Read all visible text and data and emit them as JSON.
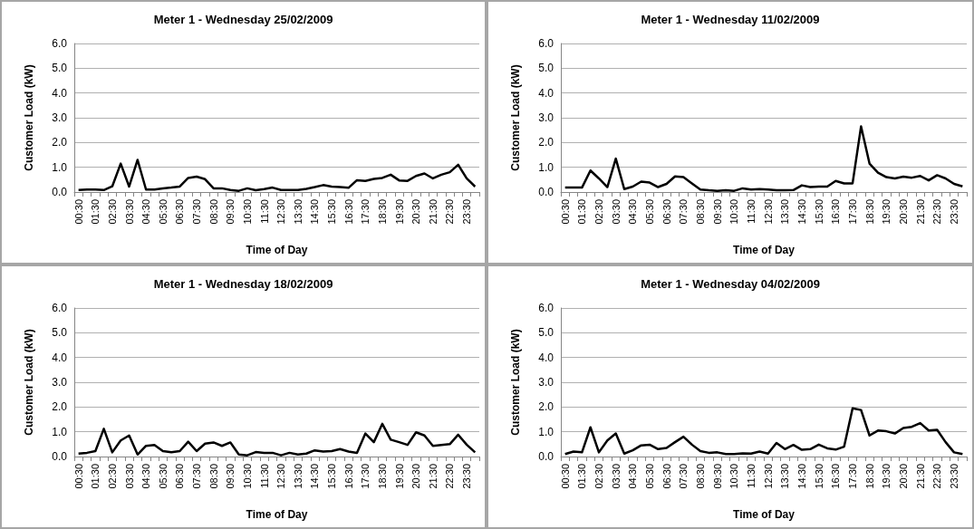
{
  "chart_data": [
    {
      "type": "line",
      "title": "Meter 1 - Wednesday 25/02/2009",
      "xlabel": "Time of Day",
      "ylabel": "Customer Load (kW)",
      "categories": [
        "00:30",
        null,
        "01:30",
        null,
        "02:30",
        null,
        "03:30",
        null,
        "04:30",
        null,
        "05:30",
        null,
        "06:30",
        null,
        "07:30",
        null,
        "08:30",
        null,
        "09:30",
        null,
        "10:30",
        null,
        "11:30",
        null,
        "12:30",
        null,
        "13:30",
        null,
        "14:30",
        null,
        "15:30",
        null,
        "16:30",
        null,
        "17:30",
        null,
        "18:30",
        null,
        "19:30",
        null,
        "20:30",
        null,
        "21:30",
        null,
        "22:30",
        null,
        "23:30",
        null
      ],
      "series": [
        {
          "color": "#000000",
          "values": [
            0.08,
            0.1,
            0.1,
            0.08,
            0.23,
            1.15,
            0.22,
            1.3,
            0.1,
            0.1,
            0.15,
            0.18,
            0.22,
            0.57,
            0.62,
            0.52,
            0.15,
            0.15,
            0.08,
            0.05,
            0.15,
            0.07,
            0.12,
            0.18,
            0.08,
            0.08,
            0.08,
            0.13,
            0.2,
            0.28,
            0.22,
            0.2,
            0.17,
            0.48,
            0.45,
            0.53,
            0.57,
            0.7,
            0.47,
            0.45,
            0.65,
            0.75,
            0.55,
            0.7,
            0.8,
            1.1,
            0.55,
            0.22
          ]
        }
      ],
      "ylim": [
        0,
        6
      ],
      "yticks": [
        {
          "value": 0,
          "label": "0.0"
        },
        {
          "value": 1,
          "label": "1.0"
        },
        {
          "value": 2,
          "label": "2.0"
        },
        {
          "value": 3,
          "label": "3.0"
        },
        {
          "value": 4,
          "label": "4.0"
        },
        {
          "value": 5,
          "label": "5.0"
        },
        {
          "value": 6,
          "label": "6.0"
        }
      ],
      "grid": "y",
      "marker": "none",
      "line_style": "solid"
    },
    {
      "type": "line",
      "title": "Meter 1 - Wednesday 11/02/2009",
      "xlabel": "Time of Day",
      "ylabel": "Customer Load (kW)",
      "categories": [
        "00:30",
        null,
        "01:30",
        null,
        "02:30",
        null,
        "03:30",
        null,
        "04:30",
        null,
        "05:30",
        null,
        "06:30",
        null,
        "07:30",
        null,
        "08:30",
        null,
        "09:30",
        null,
        "10:30",
        null,
        "11:30",
        null,
        "12:30",
        null,
        "13:30",
        null,
        "14:30",
        null,
        "15:30",
        null,
        "16:30",
        null,
        "17:30",
        null,
        "18:30",
        null,
        "19:30",
        null,
        "20:30",
        null,
        "21:30",
        null,
        "22:30",
        null,
        "23:30",
        null
      ],
      "series": [
        {
          "color": "#000000",
          "values": [
            0.18,
            0.18,
            0.18,
            0.87,
            0.55,
            0.2,
            1.35,
            0.12,
            0.22,
            0.42,
            0.38,
            0.2,
            0.33,
            0.63,
            0.6,
            0.35,
            0.1,
            0.07,
            0.05,
            0.07,
            0.05,
            0.15,
            0.1,
            0.12,
            0.1,
            0.07,
            0.07,
            0.08,
            0.27,
            0.2,
            0.22,
            0.22,
            0.45,
            0.35,
            0.35,
            2.65,
            1.15,
            0.78,
            0.6,
            0.55,
            0.62,
            0.58,
            0.65,
            0.47,
            0.68,
            0.55,
            0.33,
            0.23
          ]
        }
      ],
      "ylim": [
        0,
        6
      ],
      "yticks": [
        {
          "value": 0,
          "label": "0.0"
        },
        {
          "value": 1,
          "label": "1.0"
        },
        {
          "value": 2,
          "label": "2.0"
        },
        {
          "value": 3,
          "label": "3.0"
        },
        {
          "value": 4,
          "label": "4.0"
        },
        {
          "value": 5,
          "label": "5.0"
        },
        {
          "value": 6,
          "label": "6.0"
        }
      ],
      "grid": "y",
      "marker": "none",
      "line_style": "solid"
    },
    {
      "type": "line",
      "title": "Meter 1 - Wednesday 18/02/2009",
      "xlabel": "Time of Day",
      "ylabel": "Customer Load (kW)",
      "categories": [
        "00:30",
        null,
        "01:30",
        null,
        "02:30",
        null,
        "03:30",
        null,
        "04:30",
        null,
        "05:30",
        null,
        "06:30",
        null,
        "07:30",
        null,
        "08:30",
        null,
        "09:30",
        null,
        "10:30",
        null,
        "11:30",
        null,
        "12:30",
        null,
        "13:30",
        null,
        "14:30",
        null,
        "15:30",
        null,
        "16:30",
        null,
        "17:30",
        null,
        "18:30",
        null,
        "19:30",
        null,
        "20:30",
        null,
        "21:30",
        null,
        "22:30",
        null,
        "23:30",
        null
      ],
      "series": [
        {
          "color": "#000000",
          "values": [
            0.12,
            0.15,
            0.22,
            1.12,
            0.17,
            0.65,
            0.85,
            0.08,
            0.43,
            0.47,
            0.22,
            0.17,
            0.22,
            0.6,
            0.22,
            0.52,
            0.57,
            0.43,
            0.57,
            0.08,
            0.05,
            0.18,
            0.15,
            0.15,
            0.05,
            0.15,
            0.08,
            0.12,
            0.25,
            0.2,
            0.22,
            0.3,
            0.2,
            0.15,
            0.93,
            0.58,
            1.32,
            0.68,
            0.58,
            0.47,
            0.98,
            0.85,
            0.43,
            0.47,
            0.5,
            0.88,
            0.48,
            0.17
          ]
        }
      ],
      "ylim": [
        0,
        6
      ],
      "yticks": [
        {
          "value": 0,
          "label": "0.0"
        },
        {
          "value": 1,
          "label": "1.0"
        },
        {
          "value": 2,
          "label": "2.0"
        },
        {
          "value": 3,
          "label": "3.0"
        },
        {
          "value": 4,
          "label": "4.0"
        },
        {
          "value": 5,
          "label": "5.0"
        },
        {
          "value": 6,
          "label": "6.0"
        }
      ],
      "grid": "y",
      "marker": "none",
      "line_style": "solid"
    },
    {
      "type": "line",
      "title": "Meter 1 - Wednesday 04/02/2009",
      "xlabel": "Time of Day",
      "ylabel": "Customer Load (kW)",
      "categories": [
        "00:30",
        null,
        "01:30",
        null,
        "02:30",
        null,
        "03:30",
        null,
        "04:30",
        null,
        "05:30",
        null,
        "06:30",
        null,
        "07:30",
        null,
        "08:30",
        null,
        "09:30",
        null,
        "10:30",
        null,
        "11:30",
        null,
        "12:30",
        null,
        "13:30",
        null,
        "14:30",
        null,
        "15:30",
        null,
        "16:30",
        null,
        "17:30",
        null,
        "18:30",
        null,
        "19:30",
        null,
        "20:30",
        null,
        "21:30",
        null,
        "22:30",
        null,
        "23:30",
        null
      ],
      "series": [
        {
          "color": "#000000",
          "values": [
            0.1,
            0.2,
            0.17,
            1.18,
            0.17,
            0.65,
            0.93,
            0.12,
            0.25,
            0.45,
            0.48,
            0.3,
            0.35,
            0.58,
            0.8,
            0.48,
            0.22,
            0.15,
            0.17,
            0.1,
            0.1,
            0.13,
            0.12,
            0.2,
            0.12,
            0.55,
            0.3,
            0.47,
            0.27,
            0.3,
            0.48,
            0.33,
            0.28,
            0.4,
            1.95,
            1.88,
            0.85,
            1.05,
            1.02,
            0.93,
            1.15,
            1.2,
            1.35,
            1.05,
            1.08,
            0.58,
            0.17,
            0.1
          ]
        }
      ],
      "ylim": [
        0,
        6
      ],
      "yticks": [
        {
          "value": 0,
          "label": "0.0"
        },
        {
          "value": 1,
          "label": "1.0"
        },
        {
          "value": 2,
          "label": "2.0"
        },
        {
          "value": 3,
          "label": "3.0"
        },
        {
          "value": 4,
          "label": "4.0"
        },
        {
          "value": 5,
          "label": "5.0"
        },
        {
          "value": 6,
          "label": "6.0"
        }
      ],
      "grid": "y",
      "marker": "none",
      "line_style": "solid"
    }
  ]
}
